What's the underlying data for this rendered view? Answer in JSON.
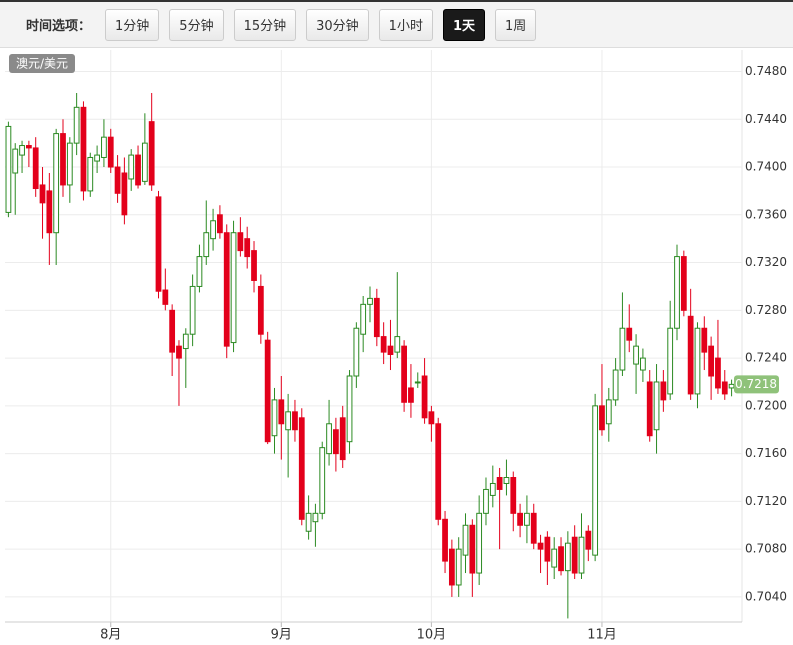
{
  "toolbar": {
    "label": "时间选项：",
    "options": [
      "1分钟",
      "5分钟",
      "15分钟",
      "30分钟",
      "1小时",
      "1天",
      "1周"
    ],
    "active": 5
  },
  "chart_data": {
    "type": "candlestick",
    "series_label": "澳元/美元",
    "up_color": "#2b8a22",
    "down_color": "#e3001b",
    "grid": true,
    "ylim": [
      0.7019,
      0.7498
    ],
    "yticks": [
      {
        "value": 0.704,
        "label": "0.7040"
      },
      {
        "value": 0.708,
        "label": "0.7080"
      },
      {
        "value": 0.712,
        "label": "0.7120"
      },
      {
        "value": 0.716,
        "label": "0.7160"
      },
      {
        "value": 0.72,
        "label": "0.7200"
      },
      {
        "value": 0.724,
        "label": "0.7240"
      },
      {
        "value": 0.728,
        "label": "0.7280"
      },
      {
        "value": 0.732,
        "label": "0.7320"
      },
      {
        "value": 0.736,
        "label": "0.7360"
      },
      {
        "value": 0.74,
        "label": "0.7400"
      },
      {
        "value": 0.744,
        "label": "0.7440"
      },
      {
        "value": 0.748,
        "label": "0.7480"
      }
    ],
    "last_price": 0.7218,
    "categories": [
      null,
      null,
      null,
      null,
      null,
      null,
      null,
      null,
      null,
      null,
      null,
      null,
      null,
      null,
      null,
      "8月",
      null,
      null,
      null,
      null,
      null,
      null,
      null,
      null,
      null,
      null,
      null,
      null,
      null,
      null,
      null,
      null,
      null,
      null,
      null,
      null,
      null,
      null,
      null,
      null,
      "9月",
      null,
      null,
      null,
      null,
      null,
      null,
      null,
      null,
      null,
      null,
      null,
      null,
      null,
      null,
      null,
      null,
      null,
      null,
      null,
      null,
      null,
      "10月",
      null,
      null,
      null,
      null,
      null,
      null,
      null,
      null,
      null,
      null,
      null,
      null,
      null,
      null,
      null,
      null,
      null,
      null,
      null,
      null,
      null,
      null,
      null,
      null,
      "11月",
      null,
      null,
      null,
      null,
      null,
      null,
      null,
      null,
      null,
      null,
      null,
      null,
      null,
      null,
      null,
      null,
      null,
      null,
      null
    ],
    "candles": [
      {
        "open": 0.7362,
        "high": 0.7438,
        "low": 0.7358,
        "close": 0.7434
      },
      {
        "open": 0.7395,
        "high": 0.742,
        "low": 0.736,
        "close": 0.7415
      },
      {
        "open": 0.741,
        "high": 0.7422,
        "low": 0.7395,
        "close": 0.7418
      },
      {
        "open": 0.7418,
        "high": 0.7422,
        "low": 0.74,
        "close": 0.7416
      },
      {
        "open": 0.7416,
        "high": 0.7425,
        "low": 0.7375,
        "close": 0.7382
      },
      {
        "open": 0.7385,
        "high": 0.74,
        "low": 0.734,
        "close": 0.737
      },
      {
        "open": 0.738,
        "high": 0.7395,
        "low": 0.7318,
        "close": 0.7345
      },
      {
        "open": 0.7345,
        "high": 0.7432,
        "low": 0.7318,
        "close": 0.7428
      },
      {
        "open": 0.7428,
        "high": 0.744,
        "low": 0.7375,
        "close": 0.7385
      },
      {
        "open": 0.7385,
        "high": 0.7425,
        "low": 0.737,
        "close": 0.742
      },
      {
        "open": 0.742,
        "high": 0.7462,
        "low": 0.741,
        "close": 0.745
      },
      {
        "open": 0.745,
        "high": 0.7455,
        "low": 0.7372,
        "close": 0.738
      },
      {
        "open": 0.738,
        "high": 0.7412,
        "low": 0.7375,
        "close": 0.7408
      },
      {
        "open": 0.7405,
        "high": 0.7418,
        "low": 0.7395,
        "close": 0.741
      },
      {
        "open": 0.7408,
        "high": 0.744,
        "low": 0.74,
        "close": 0.7425
      },
      {
        "open": 0.7425,
        "high": 0.7432,
        "low": 0.7395,
        "close": 0.74
      },
      {
        "open": 0.74,
        "high": 0.741,
        "low": 0.737,
        "close": 0.7378
      },
      {
        "open": 0.7395,
        "high": 0.7408,
        "low": 0.7352,
        "close": 0.736
      },
      {
        "open": 0.739,
        "high": 0.7415,
        "low": 0.738,
        "close": 0.741
      },
      {
        "open": 0.741,
        "high": 0.7418,
        "low": 0.7382,
        "close": 0.7385
      },
      {
        "open": 0.7388,
        "high": 0.7445,
        "low": 0.7385,
        "close": 0.742
      },
      {
        "open": 0.7438,
        "high": 0.7462,
        "low": 0.738,
        "close": 0.7385
      },
      {
        "open": 0.7375,
        "high": 0.738,
        "low": 0.729,
        "close": 0.7296
      },
      {
        "open": 0.7297,
        "high": 0.7315,
        "low": 0.728,
        "close": 0.7285
      },
      {
        "open": 0.728,
        "high": 0.7285,
        "low": 0.7225,
        "close": 0.7245
      },
      {
        "open": 0.725,
        "high": 0.7255,
        "low": 0.72,
        "close": 0.724
      },
      {
        "open": 0.7248,
        "high": 0.7265,
        "low": 0.7215,
        "close": 0.726
      },
      {
        "open": 0.726,
        "high": 0.731,
        "low": 0.725,
        "close": 0.73
      },
      {
        "open": 0.73,
        "high": 0.7335,
        "low": 0.7295,
        "close": 0.7325
      },
      {
        "open": 0.7325,
        "high": 0.7372,
        "low": 0.7318,
        "close": 0.7345
      },
      {
        "open": 0.734,
        "high": 0.7365,
        "low": 0.733,
        "close": 0.7355
      },
      {
        "open": 0.736,
        "high": 0.7368,
        "low": 0.734,
        "close": 0.7345
      },
      {
        "open": 0.7345,
        "high": 0.7352,
        "low": 0.724,
        "close": 0.725
      },
      {
        "open": 0.7253,
        "high": 0.7355,
        "low": 0.7245,
        "close": 0.7345
      },
      {
        "open": 0.7345,
        "high": 0.7358,
        "low": 0.7325,
        "close": 0.733
      },
      {
        "open": 0.734,
        "high": 0.735,
        "low": 0.7315,
        "close": 0.7325
      },
      {
        "open": 0.733,
        "high": 0.7338,
        "low": 0.7295,
        "close": 0.7305
      },
      {
        "open": 0.73,
        "high": 0.731,
        "low": 0.7252,
        "close": 0.726
      },
      {
        "open": 0.7255,
        "high": 0.7262,
        "low": 0.7168,
        "close": 0.717
      },
      {
        "open": 0.7175,
        "high": 0.7215,
        "low": 0.716,
        "close": 0.7205
      },
      {
        "open": 0.7205,
        "high": 0.7225,
        "low": 0.7155,
        "close": 0.7185
      },
      {
        "open": 0.718,
        "high": 0.721,
        "low": 0.714,
        "close": 0.7195
      },
      {
        "open": 0.7195,
        "high": 0.7205,
        "low": 0.717,
        "close": 0.718
      },
      {
        "open": 0.719,
        "high": 0.7198,
        "low": 0.71,
        "close": 0.7105
      },
      {
        "open": 0.7095,
        "high": 0.7125,
        "low": 0.7088,
        "close": 0.711
      },
      {
        "open": 0.7103,
        "high": 0.7118,
        "low": 0.7082,
        "close": 0.711
      },
      {
        "open": 0.711,
        "high": 0.717,
        "low": 0.7105,
        "close": 0.7165
      },
      {
        "open": 0.716,
        "high": 0.7205,
        "low": 0.715,
        "close": 0.7185
      },
      {
        "open": 0.718,
        "high": 0.719,
        "low": 0.7145,
        "close": 0.716
      },
      {
        "open": 0.719,
        "high": 0.72,
        "low": 0.7148,
        "close": 0.7155
      },
      {
        "open": 0.717,
        "high": 0.723,
        "low": 0.716,
        "close": 0.7225
      },
      {
        "open": 0.7225,
        "high": 0.727,
        "low": 0.7215,
        "close": 0.7265
      },
      {
        "open": 0.726,
        "high": 0.7292,
        "low": 0.7245,
        "close": 0.7285
      },
      {
        "open": 0.7285,
        "high": 0.73,
        "low": 0.727,
        "close": 0.729
      },
      {
        "open": 0.729,
        "high": 0.7298,
        "low": 0.725,
        "close": 0.7258
      },
      {
        "open": 0.7258,
        "high": 0.727,
        "low": 0.7235,
        "close": 0.7245
      },
      {
        "open": 0.725,
        "high": 0.7272,
        "low": 0.723,
        "close": 0.7243
      },
      {
        "open": 0.7245,
        "high": 0.7312,
        "low": 0.724,
        "close": 0.7258
      },
      {
        "open": 0.725,
        "high": 0.7255,
        "low": 0.7195,
        "close": 0.7203
      },
      {
        "open": 0.7215,
        "high": 0.7235,
        "low": 0.719,
        "close": 0.7203
      },
      {
        "open": 0.722,
        "high": 0.7228,
        "low": 0.7215,
        "close": 0.722
      },
      {
        "open": 0.7225,
        "high": 0.724,
        "low": 0.7185,
        "close": 0.719
      },
      {
        "open": 0.7195,
        "high": 0.72,
        "low": 0.717,
        "close": 0.7185
      },
      {
        "open": 0.7185,
        "high": 0.719,
        "low": 0.71,
        "close": 0.7105
      },
      {
        "open": 0.7105,
        "high": 0.7112,
        "low": 0.706,
        "close": 0.707
      },
      {
        "open": 0.708,
        "high": 0.7088,
        "low": 0.704,
        "close": 0.705
      },
      {
        "open": 0.705,
        "high": 0.709,
        "low": 0.704,
        "close": 0.708
      },
      {
        "open": 0.7075,
        "high": 0.711,
        "low": 0.706,
        "close": 0.71
      },
      {
        "open": 0.71,
        "high": 0.7105,
        "low": 0.704,
        "close": 0.706
      },
      {
        "open": 0.706,
        "high": 0.7125,
        "low": 0.705,
        "close": 0.711
      },
      {
        "open": 0.711,
        "high": 0.714,
        "low": 0.71,
        "close": 0.713
      },
      {
        "open": 0.7125,
        "high": 0.715,
        "low": 0.7115,
        "close": 0.7135
      },
      {
        "open": 0.714,
        "high": 0.7148,
        "low": 0.708,
        "close": 0.713
      },
      {
        "open": 0.7135,
        "high": 0.7155,
        "low": 0.7125,
        "close": 0.714
      },
      {
        "open": 0.714,
        "high": 0.7145,
        "low": 0.7095,
        "close": 0.711
      },
      {
        "open": 0.711,
        "high": 0.7118,
        "low": 0.709,
        "close": 0.71
      },
      {
        "open": 0.71,
        "high": 0.7125,
        "low": 0.7085,
        "close": 0.711
      },
      {
        "open": 0.711,
        "high": 0.7118,
        "low": 0.708,
        "close": 0.7085
      },
      {
        "open": 0.7085,
        "high": 0.7092,
        "low": 0.706,
        "close": 0.708
      },
      {
        "open": 0.709,
        "high": 0.7095,
        "low": 0.705,
        "close": 0.707
      },
      {
        "open": 0.7065,
        "high": 0.709,
        "low": 0.7055,
        "close": 0.708
      },
      {
        "open": 0.7082,
        "high": 0.709,
        "low": 0.7058,
        "close": 0.7062
      },
      {
        "open": 0.7062,
        "high": 0.7095,
        "low": 0.7022,
        "close": 0.7085
      },
      {
        "open": 0.709,
        "high": 0.71,
        "low": 0.7055,
        "close": 0.706
      },
      {
        "open": 0.706,
        "high": 0.711,
        "low": 0.7055,
        "close": 0.709
      },
      {
        "open": 0.7095,
        "high": 0.71,
        "low": 0.707,
        "close": 0.708
      },
      {
        "open": 0.7075,
        "high": 0.721,
        "low": 0.707,
        "close": 0.72
      },
      {
        "open": 0.72,
        "high": 0.7235,
        "low": 0.7175,
        "close": 0.718
      },
      {
        "open": 0.7185,
        "high": 0.7215,
        "low": 0.717,
        "close": 0.7205
      },
      {
        "open": 0.7205,
        "high": 0.724,
        "low": 0.72,
        "close": 0.723
      },
      {
        "open": 0.723,
        "high": 0.7295,
        "low": 0.7225,
        "close": 0.7265
      },
      {
        "open": 0.7265,
        "high": 0.7285,
        "low": 0.7245,
        "close": 0.7255
      },
      {
        "open": 0.7235,
        "high": 0.726,
        "low": 0.721,
        "close": 0.725
      },
      {
        "open": 0.723,
        "high": 0.7248,
        "low": 0.722,
        "close": 0.724
      },
      {
        "open": 0.722,
        "high": 0.723,
        "low": 0.717,
        "close": 0.7175
      },
      {
        "open": 0.718,
        "high": 0.7235,
        "low": 0.716,
        "close": 0.722
      },
      {
        "open": 0.722,
        "high": 0.723,
        "low": 0.7195,
        "close": 0.7205
      },
      {
        "open": 0.721,
        "high": 0.7288,
        "low": 0.7205,
        "close": 0.7265
      },
      {
        "open": 0.7265,
        "high": 0.7335,
        "low": 0.7255,
        "close": 0.7325
      },
      {
        "open": 0.7325,
        "high": 0.733,
        "low": 0.7275,
        "close": 0.728
      },
      {
        "open": 0.7275,
        "high": 0.7298,
        "low": 0.7205,
        "close": 0.721
      },
      {
        "open": 0.721,
        "high": 0.727,
        "low": 0.7198,
        "close": 0.7265
      },
      {
        "open": 0.7265,
        "high": 0.7275,
        "low": 0.723,
        "close": 0.7245
      },
      {
        "open": 0.725,
        "high": 0.7258,
        "low": 0.7205,
        "close": 0.7225
      },
      {
        "open": 0.724,
        "high": 0.7272,
        "low": 0.721,
        "close": 0.7215
      },
      {
        "open": 0.722,
        "high": 0.723,
        "low": 0.7205,
        "close": 0.721
      },
      {
        "open": 0.7215,
        "high": 0.7222,
        "low": 0.7208,
        "close": 0.7218
      }
    ]
  }
}
